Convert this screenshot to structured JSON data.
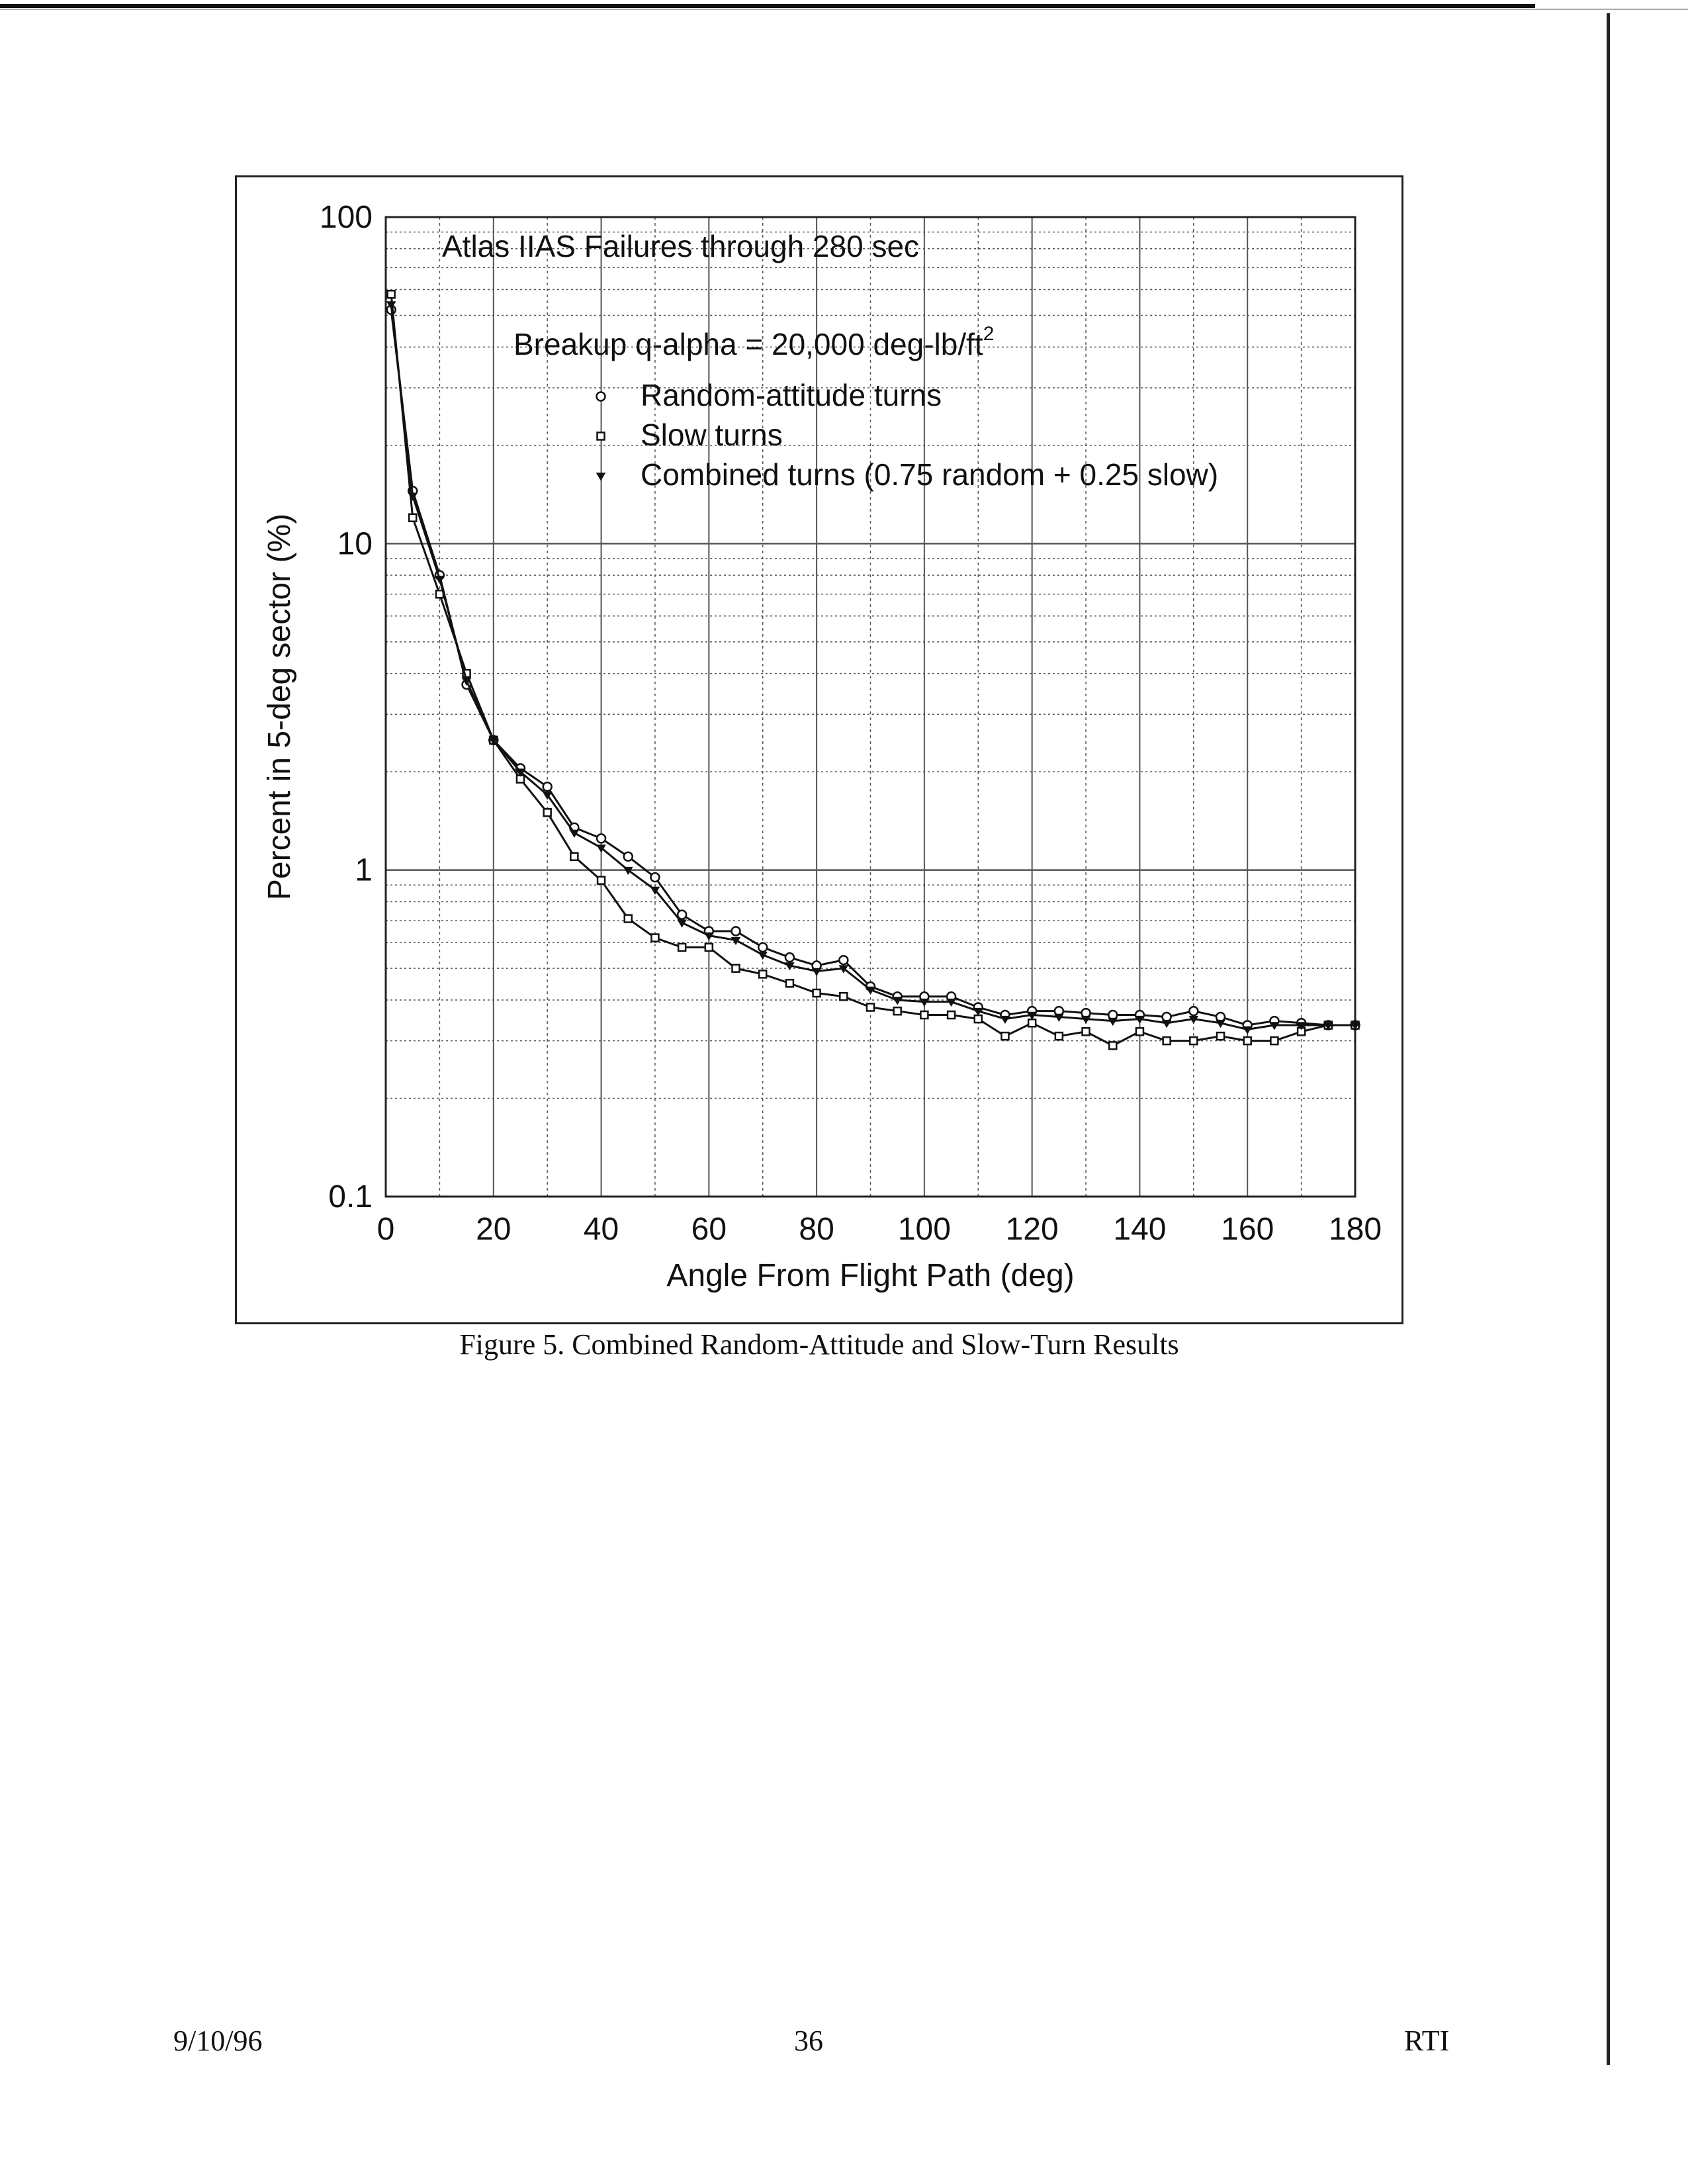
{
  "figure": {
    "caption": "Figure 5. Combined Random-Attitude and Slow-Turn Results"
  },
  "footer": {
    "date": "9/10/96",
    "page": "36",
    "org": "RTI"
  },
  "chart_data": {
    "type": "line",
    "title": "Atlas IIAS Failures through 280 sec",
    "subtitle_prefix": "Breakup q-alpha = 20,000 deg-lb/ft",
    "subtitle_exponent": "2",
    "xlabel": "Angle From Flight Path (deg)",
    "ylabel": "Percent in 5-deg sector (%)",
    "xlim": [
      0,
      180
    ],
    "ylim": [
      0.1,
      100
    ],
    "yscale": "log",
    "grid": true,
    "legend_placement": "top-center",
    "x_ticks": [
      "0",
      "20",
      "40",
      "60",
      "80",
      "100",
      "120",
      "140",
      "160",
      "180"
    ],
    "y_ticks": [
      "0.1",
      "1",
      "10",
      "100"
    ],
    "x": [
      1,
      5,
      10,
      15,
      20,
      25,
      30,
      35,
      40,
      45,
      50,
      55,
      60,
      65,
      70,
      75,
      80,
      85,
      90,
      95,
      100,
      105,
      110,
      115,
      120,
      125,
      130,
      135,
      140,
      145,
      150,
      155,
      160,
      165,
      170,
      175,
      180
    ],
    "series": [
      {
        "name": "Random-attitude turns",
        "marker": "circle",
        "values": [
          52,
          14.5,
          8,
          3.7,
          2.5,
          2.05,
          1.8,
          1.35,
          1.25,
          1.1,
          0.95,
          0.73,
          0.65,
          0.65,
          0.58,
          0.54,
          0.51,
          0.53,
          0.44,
          0.41,
          0.41,
          0.41,
          0.38,
          0.36,
          0.37,
          0.37,
          0.365,
          0.36,
          0.36,
          0.355,
          0.37,
          0.355,
          0.335,
          0.345,
          0.34,
          0.335,
          0.335
        ]
      },
      {
        "name": "Slow turns",
        "marker": "square",
        "values": [
          58,
          12,
          7,
          4,
          2.5,
          1.9,
          1.5,
          1.1,
          0.93,
          0.71,
          0.62,
          0.58,
          0.58,
          0.5,
          0.48,
          0.45,
          0.42,
          0.41,
          0.38,
          0.37,
          0.36,
          0.36,
          0.35,
          0.31,
          0.34,
          0.31,
          0.32,
          0.29,
          0.32,
          0.3,
          0.3,
          0.31,
          0.3,
          0.3,
          0.32,
          0.335,
          0.335
        ]
      },
      {
        "name": "Combined turns (0.75 random + 0.25 slow)",
        "marker": "triangle",
        "values": [
          54,
          14,
          7.8,
          3.8,
          2.5,
          2.0,
          1.7,
          1.3,
          1.17,
          1.0,
          0.87,
          0.69,
          0.63,
          0.61,
          0.55,
          0.51,
          0.49,
          0.5,
          0.43,
          0.4,
          0.395,
          0.395,
          0.37,
          0.35,
          0.36,
          0.355,
          0.35,
          0.345,
          0.35,
          0.34,
          0.35,
          0.34,
          0.325,
          0.335,
          0.335,
          0.335,
          0.335
        ]
      }
    ]
  }
}
